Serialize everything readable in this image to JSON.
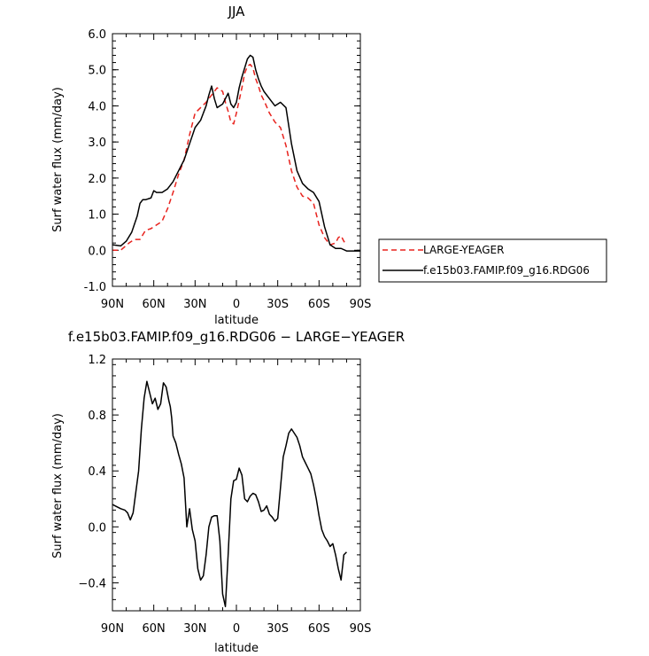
{
  "chart_data": [
    {
      "type": "line",
      "title": "JJA",
      "xlabel": "latitude",
      "ylabel": "Surf water flux (mm/day)",
      "xlim": [
        90,
        -90
      ],
      "ylim": [
        -1.0,
        6.0
      ],
      "x_ticks": [
        90,
        60,
        30,
        0,
        -30,
        -60,
        -90
      ],
      "x_tick_labels": [
        "90N",
        "60N",
        "30N",
        "0",
        "30S",
        "60S",
        "90S"
      ],
      "y_ticks": [
        -1.0,
        0.0,
        1.0,
        2.0,
        3.0,
        4.0,
        5.0,
        6.0
      ],
      "y_tick_labels": [
        "-1.0",
        "0.0",
        "1.0",
        "2.0",
        "3.0",
        "4.0",
        "5.0",
        "6.0"
      ],
      "legend_position": "right",
      "series": [
        {
          "name": "LARGE-YEAGER",
          "color": "#e8231e",
          "dash": "dashed",
          "x": [
            90,
            84,
            78,
            74,
            70,
            66,
            62,
            58,
            54,
            50,
            46,
            42,
            38,
            34,
            30,
            26,
            22,
            18,
            14,
            10,
            8,
            6,
            4,
            2,
            0,
            -2,
            -4,
            -6,
            -8,
            -10,
            -12,
            -14,
            -16,
            -18,
            -20,
            -24,
            -28,
            -32,
            -36,
            -40,
            -44,
            -48,
            -52,
            -56,
            -60,
            -64,
            -68,
            -72,
            -74,
            -76,
            -78,
            -80
          ],
          "y": [
            0.0,
            0.0,
            0.2,
            0.3,
            0.3,
            0.55,
            0.6,
            0.7,
            0.8,
            1.15,
            1.6,
            2.1,
            2.5,
            3.2,
            3.8,
            3.95,
            4.1,
            4.3,
            4.5,
            4.4,
            4.1,
            3.85,
            3.55,
            3.5,
            3.8,
            4.15,
            4.5,
            4.9,
            5.1,
            5.15,
            5.05,
            4.75,
            4.55,
            4.3,
            4.15,
            3.8,
            3.55,
            3.4,
            2.9,
            2.2,
            1.75,
            1.5,
            1.45,
            1.3,
            0.7,
            0.35,
            0.15,
            0.2,
            0.35,
            0.4,
            0.25,
            0.15
          ]
        },
        {
          "name": "f.e15b03.FAMIP.f09_g16.RDG06",
          "color": "#000000",
          "dash": "solid",
          "x": [
            90,
            84,
            80,
            76,
            72,
            70,
            68,
            66,
            62,
            60,
            58,
            54,
            50,
            46,
            42,
            38,
            34,
            30,
            26,
            22,
            20,
            18,
            16,
            14,
            12,
            10,
            8,
            6,
            4,
            2,
            0,
            -2,
            -4,
            -6,
            -8,
            -10,
            -12,
            -14,
            -16,
            -18,
            -20,
            -24,
            -28,
            -32,
            -36,
            -40,
            -44,
            -48,
            -52,
            -56,
            -60,
            -64,
            -68,
            -72,
            -76,
            -80,
            -84,
            -90
          ],
          "y": [
            0.15,
            0.12,
            0.25,
            0.5,
            0.95,
            1.3,
            1.4,
            1.4,
            1.45,
            1.65,
            1.6,
            1.6,
            1.7,
            1.9,
            2.2,
            2.5,
            2.95,
            3.4,
            3.6,
            4.0,
            4.3,
            4.55,
            4.2,
            3.95,
            4.0,
            4.05,
            4.2,
            4.35,
            4.05,
            3.95,
            4.1,
            4.5,
            4.8,
            5.05,
            5.3,
            5.4,
            5.35,
            5.0,
            4.75,
            4.55,
            4.4,
            4.2,
            4.0,
            4.1,
            3.95,
            2.95,
            2.2,
            1.85,
            1.7,
            1.6,
            1.35,
            0.65,
            0.15,
            0.05,
            0.05,
            -0.02,
            -0.02,
            -0.02
          ]
        }
      ]
    },
    {
      "type": "line",
      "title": "f.e15b03.FAMIP.f09_g16.RDG06 − LARGE−YEAGER",
      "xlabel": "latitude",
      "ylabel": "Surf water flux (mm/day)",
      "xlim": [
        90,
        -90
      ],
      "ylim": [
        -0.6,
        1.2
      ],
      "x_ticks": [
        90,
        60,
        30,
        0,
        -30,
        -60,
        -90
      ],
      "x_tick_labels": [
        "90N",
        "60N",
        "30N",
        "0",
        "30S",
        "60S",
        "90S"
      ],
      "y_ticks": [
        -0.4,
        0.0,
        0.4,
        0.8,
        1.2
      ],
      "y_tick_labels": [
        "−0.4",
        "0.0",
        "0.4",
        "0.8",
        "1.2"
      ],
      "series": [
        {
          "color": "#000000",
          "dash": "solid",
          "x": [
            90,
            88,
            84,
            81,
            79,
            77,
            75,
            73,
            71,
            69,
            67,
            65,
            63,
            61,
            59,
            57,
            55,
            53,
            51,
            49,
            48,
            47,
            46,
            44,
            42,
            40,
            38,
            36,
            34,
            32,
            30,
            28,
            26,
            24,
            22,
            20,
            18,
            16,
            14,
            12,
            10,
            8,
            6,
            4,
            2,
            0,
            -2,
            -4,
            -6,
            -8,
            -10,
            -12,
            -14,
            -16,
            -18,
            -20,
            -22,
            -24,
            -26,
            -28,
            -30,
            -32,
            -34,
            -36,
            -38,
            -40,
            -42,
            -44,
            -46,
            -48,
            -50,
            -52,
            -54,
            -56,
            -58,
            -60,
            -62,
            -64,
            -66,
            -68,
            -70,
            -72,
            -74,
            -76,
            -78,
            -80
          ],
          "y": [
            0.16,
            0.15,
            0.13,
            0.12,
            0.1,
            0.05,
            0.1,
            0.25,
            0.4,
            0.7,
            0.92,
            1.04,
            0.96,
            0.88,
            0.92,
            0.84,
            0.88,
            1.03,
            1.0,
            0.9,
            0.86,
            0.78,
            0.65,
            0.6,
            0.52,
            0.45,
            0.35,
            0.0,
            0.13,
            -0.02,
            -0.1,
            -0.3,
            -0.38,
            -0.35,
            -0.2,
            0.0,
            0.07,
            0.08,
            0.08,
            -0.1,
            -0.48,
            -0.57,
            -0.2,
            0.2,
            0.33,
            0.34,
            0.42,
            0.37,
            0.2,
            0.18,
            0.22,
            0.24,
            0.23,
            0.18,
            0.11,
            0.12,
            0.15,
            0.09,
            0.07,
            0.04,
            0.06,
            0.28,
            0.5,
            0.58,
            0.67,
            0.7,
            0.67,
            0.64,
            0.58,
            0.5,
            0.46,
            0.42,
            0.38,
            0.3,
            0.2,
            0.08,
            -0.02,
            -0.07,
            -0.1,
            -0.14,
            -0.12,
            -0.2,
            -0.3,
            -0.38,
            -0.2,
            -0.18
          ]
        }
      ]
    }
  ]
}
